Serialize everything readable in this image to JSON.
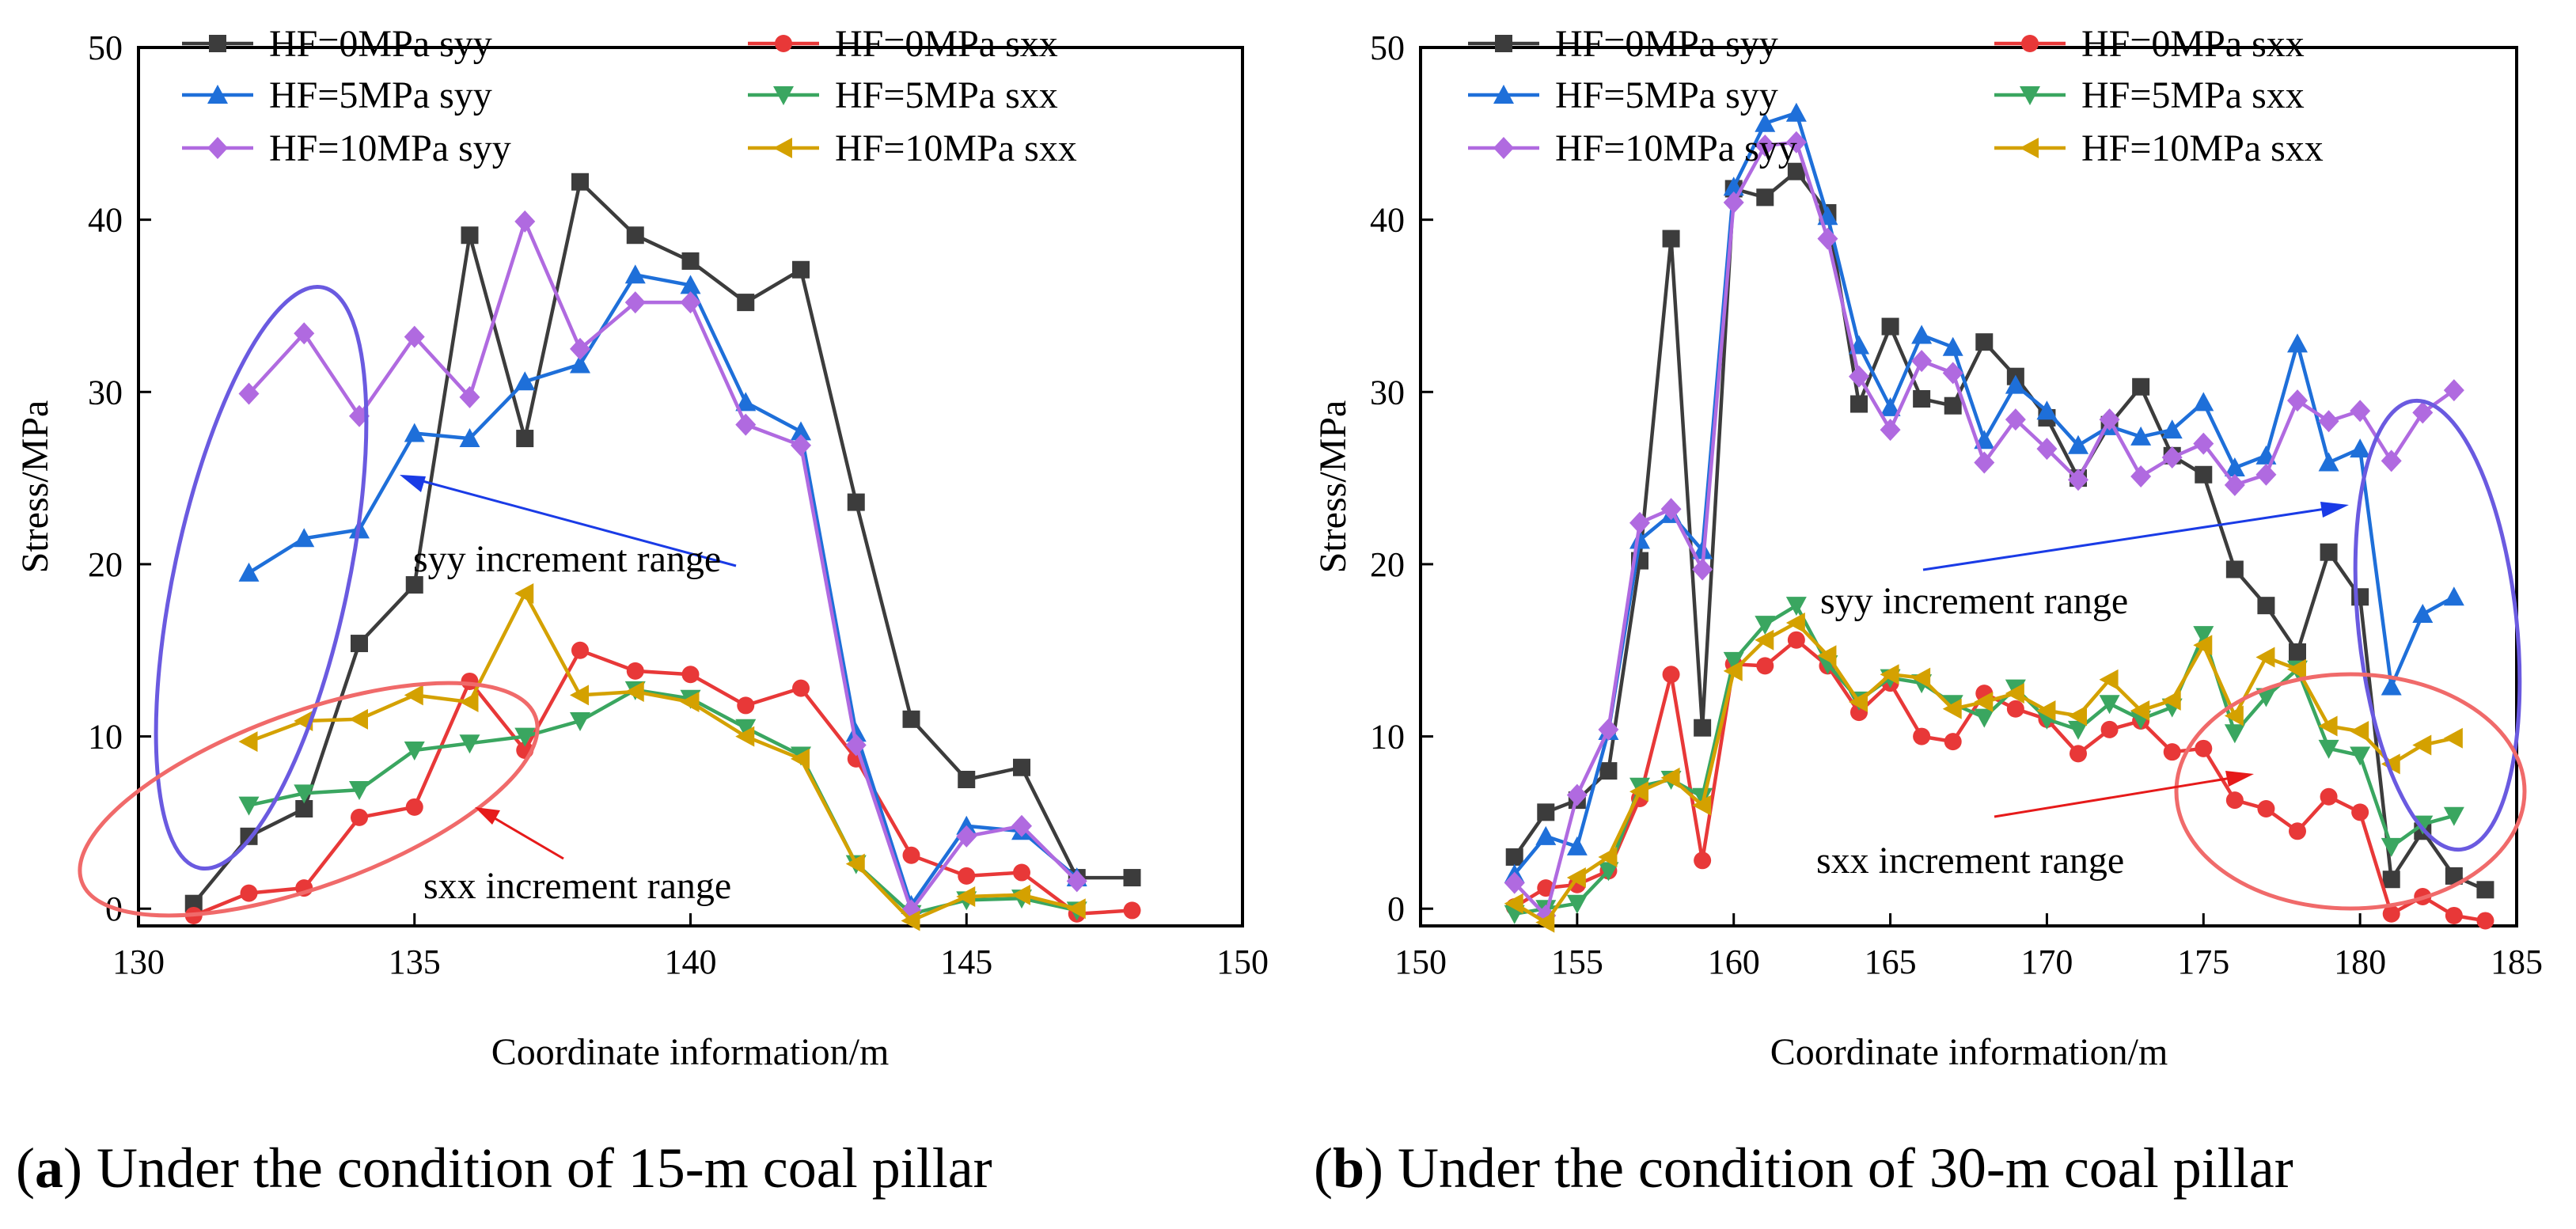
{
  "chart_data": [
    {
      "type": "line",
      "panel": "a",
      "caption_label": "a",
      "caption_text": "Under the condition of 15-m coal pillar",
      "xlabel": "Coordinate information/m",
      "ylabel": "Stress/MPa",
      "xlim": [
        130,
        150
      ],
      "ylim": [
        -1,
        50
      ],
      "xticks": [
        130,
        135,
        140,
        145,
        150
      ],
      "yticks": [
        0,
        10,
        20,
        30,
        40,
        50
      ],
      "series": [
        {
          "name": "HF=0MPa syy",
          "color": "#3c3c3c",
          "marker": "square",
          "x": [
            131,
            132,
            133,
            134,
            135,
            136,
            137,
            138,
            139,
            140,
            141,
            142,
            143,
            144,
            145,
            146,
            147,
            148
          ],
          "y": [
            0.3,
            4.2,
            5.8,
            15.4,
            18.8,
            39.1,
            27.3,
            42.2,
            39.1,
            37.6,
            35.2,
            37.1,
            23.6,
            11.0,
            7.5,
            8.2,
            1.8,
            1.8
          ]
        },
        {
          "name": "HF=0MPa sxx",
          "color": "#e83838",
          "marker": "circle",
          "x": [
            131,
            132,
            133,
            134,
            135,
            136,
            137,
            138,
            139,
            140,
            141,
            142,
            143,
            144,
            145,
            146,
            147,
            148
          ],
          "y": [
            -0.4,
            0.9,
            1.2,
            5.3,
            5.9,
            13.2,
            9.2,
            15.0,
            13.8,
            13.6,
            11.8,
            12.8,
            8.7,
            3.1,
            1.9,
            2.1,
            -0.3,
            -0.1
          ]
        },
        {
          "name": "HF=5MPa syy",
          "color": "#1e6fd9",
          "marker": "triangle-up",
          "x": [
            132,
            133,
            134,
            135,
            136,
            137,
            138,
            139,
            140,
            141,
            142,
            143,
            144,
            145,
            146,
            147
          ],
          "y": [
            19.5,
            21.5,
            22.0,
            27.6,
            27.3,
            30.6,
            31.6,
            36.8,
            36.2,
            29.4,
            27.7,
            10.2,
            0.2,
            4.8,
            4.5,
            1.8
          ]
        },
        {
          "name": "HF=5MPa sxx",
          "color": "#3aa660",
          "marker": "triangle-down",
          "x": [
            132,
            133,
            134,
            135,
            136,
            137,
            138,
            139,
            140,
            141,
            142,
            143,
            144,
            145,
            146,
            147
          ],
          "y": [
            6.0,
            6.7,
            6.9,
            9.2,
            9.6,
            10.0,
            10.9,
            12.7,
            12.2,
            10.5,
            8.9,
            2.6,
            -0.3,
            0.5,
            0.6,
            -0.1
          ]
        },
        {
          "name": "HF=10MPa syy",
          "color": "#b06ae0",
          "marker": "diamond",
          "x": [
            132,
            133,
            134,
            135,
            136,
            137,
            138,
            139,
            140,
            141,
            142,
            143,
            144,
            145,
            146,
            147
          ],
          "y": [
            29.9,
            33.4,
            28.6,
            33.2,
            29.7,
            39.9,
            32.5,
            35.2,
            35.2,
            28.1,
            26.9,
            9.5,
            -0.1,
            4.2,
            4.8,
            1.6
          ]
        },
        {
          "name": "HF=10MPa sxx",
          "color": "#d4a100",
          "marker": "triangle-left",
          "x": [
            132,
            133,
            134,
            135,
            136,
            137,
            138,
            139,
            140,
            141,
            142,
            143,
            144,
            145,
            146,
            147
          ],
          "y": [
            9.7,
            10.9,
            11.0,
            12.4,
            12.0,
            18.3,
            12.4,
            12.6,
            12.0,
            10.0,
            8.7,
            2.6,
            -0.7,
            0.7,
            0.8,
            0.0
          ]
        }
      ],
      "annotations": [
        "syy increment range",
        "sxx increment range"
      ]
    },
    {
      "type": "line",
      "panel": "b",
      "caption_label": "b",
      "caption_text": "Under the condition of 30-m coal pillar",
      "xlabel": "Coordinate information/m",
      "ylabel": "Stress/MPa",
      "xlim": [
        150,
        185
      ],
      "ylim": [
        -1,
        50
      ],
      "xticks": [
        150,
        155,
        160,
        165,
        170,
        175,
        180,
        185
      ],
      "yticks": [
        0,
        10,
        20,
        30,
        40,
        50
      ],
      "series": [
        {
          "name": "HF=0MPa syy",
          "color": "#3c3c3c",
          "marker": "square",
          "x": [
            153,
            154,
            155,
            156,
            157,
            158,
            159,
            160,
            161,
            162,
            163,
            164,
            165,
            166,
            167,
            168,
            169,
            170,
            171,
            172,
            173,
            174,
            175,
            176,
            177,
            178,
            179,
            180,
            181,
            182,
            183,
            184
          ],
          "y": [
            3.0,
            5.6,
            6.3,
            8.0,
            20.2,
            38.9,
            10.5,
            41.8,
            41.3,
            42.8,
            40.4,
            29.3,
            33.8,
            29.6,
            29.2,
            32.9,
            30.9,
            28.5,
            25.0,
            28.1,
            30.3,
            26.3,
            25.2,
            19.7,
            17.6,
            14.9,
            20.7,
            18.1,
            1.7,
            4.5,
            1.9,
            1.1
          ]
        },
        {
          "name": "HF=0MPa sxx",
          "color": "#e83838",
          "marker": "circle",
          "x": [
            153,
            154,
            155,
            156,
            157,
            158,
            159,
            160,
            161,
            162,
            163,
            164,
            165,
            166,
            167,
            168,
            169,
            170,
            171,
            172,
            173,
            174,
            175,
            176,
            177,
            178,
            179,
            180,
            181,
            182,
            183,
            184
          ],
          "y": [
            0.1,
            1.2,
            1.4,
            2.2,
            6.4,
            13.6,
            2.8,
            14.2,
            14.1,
            15.6,
            14.1,
            11.4,
            13.1,
            10.0,
            9.7,
            12.5,
            11.6,
            11.0,
            9.0,
            10.4,
            10.9,
            9.1,
            9.3,
            6.3,
            5.8,
            4.5,
            6.5,
            5.6,
            -0.3,
            0.7,
            -0.4,
            -0.7
          ]
        },
        {
          "name": "HF=5MPa syy",
          "color": "#1e6fd9",
          "marker": "triangle-up",
          "x": [
            153,
            154,
            155,
            156,
            157,
            158,
            159,
            160,
            161,
            162,
            163,
            164,
            165,
            166,
            167,
            168,
            169,
            170,
            171,
            172,
            173,
            174,
            175,
            176,
            177,
            178,
            179,
            180,
            181,
            182,
            183
          ],
          "y": [
            2.0,
            4.2,
            3.6,
            10.3,
            21.4,
            22.9,
            20.8,
            41.9,
            45.6,
            46.2,
            40.2,
            32.7,
            29.1,
            33.3,
            32.6,
            27.2,
            30.4,
            28.9,
            26.9,
            28.0,
            27.4,
            27.8,
            29.4,
            25.6,
            26.3,
            32.8,
            25.9,
            26.7,
            12.9,
            17.1,
            18.1
          ]
        },
        {
          "name": "HF=5MPa sxx",
          "color": "#3aa660",
          "marker": "triangle-down",
          "x": [
            153,
            154,
            155,
            156,
            157,
            158,
            159,
            160,
            161,
            162,
            163,
            164,
            165,
            166,
            167,
            168,
            169,
            170,
            171,
            172,
            173,
            174,
            175,
            176,
            177,
            178,
            179,
            180,
            181,
            182,
            183
          ],
          "y": [
            -0.3,
            0.0,
            0.3,
            2.2,
            7.1,
            7.5,
            6.5,
            14.4,
            16.5,
            17.6,
            14.2,
            12.1,
            13.4,
            13.1,
            11.9,
            11.1,
            12.8,
            11.0,
            10.4,
            11.9,
            11.0,
            11.7,
            15.9,
            10.2,
            12.3,
            13.9,
            9.3,
            8.9,
            3.6,
            4.9,
            5.4
          ]
        },
        {
          "name": "HF=10MPa syy",
          "color": "#b06ae0",
          "marker": "diamond",
          "x": [
            153,
            154,
            155,
            156,
            157,
            158,
            159,
            160,
            161,
            162,
            163,
            164,
            165,
            166,
            167,
            168,
            169,
            170,
            171,
            172,
            173,
            174,
            175,
            176,
            177,
            178,
            179,
            180,
            181,
            182,
            183
          ],
          "y": [
            1.5,
            -0.4,
            6.6,
            10.4,
            22.4,
            23.2,
            19.7,
            41.0,
            44.3,
            44.5,
            38.9,
            30.9,
            27.8,
            31.8,
            31.1,
            25.9,
            28.4,
            26.7,
            24.9,
            28.4,
            25.1,
            26.2,
            27.0,
            24.6,
            25.2,
            29.5,
            28.3,
            28.9,
            26.0,
            28.8,
            30.1
          ]
        },
        {
          "name": "HF=10MPa sxx",
          "color": "#d4a100",
          "marker": "triangle-left",
          "x": [
            153,
            154,
            155,
            156,
            157,
            158,
            159,
            160,
            161,
            162,
            163,
            164,
            165,
            166,
            167,
            168,
            169,
            170,
            171,
            172,
            173,
            174,
            175,
            176,
            177,
            178,
            179,
            180,
            181,
            182,
            183
          ],
          "y": [
            0.3,
            -0.8,
            1.8,
            3.0,
            6.8,
            7.6,
            6.0,
            13.8,
            15.6,
            16.6,
            14.7,
            12.0,
            13.6,
            13.4,
            11.6,
            12.0,
            12.5,
            11.5,
            11.2,
            13.3,
            11.5,
            12.1,
            15.3,
            11.2,
            14.6,
            13.9,
            10.6,
            10.3,
            8.4,
            9.5,
            9.9
          ]
        }
      ],
      "annotations": [
        "syy increment range",
        "sxx increment range"
      ]
    }
  ]
}
